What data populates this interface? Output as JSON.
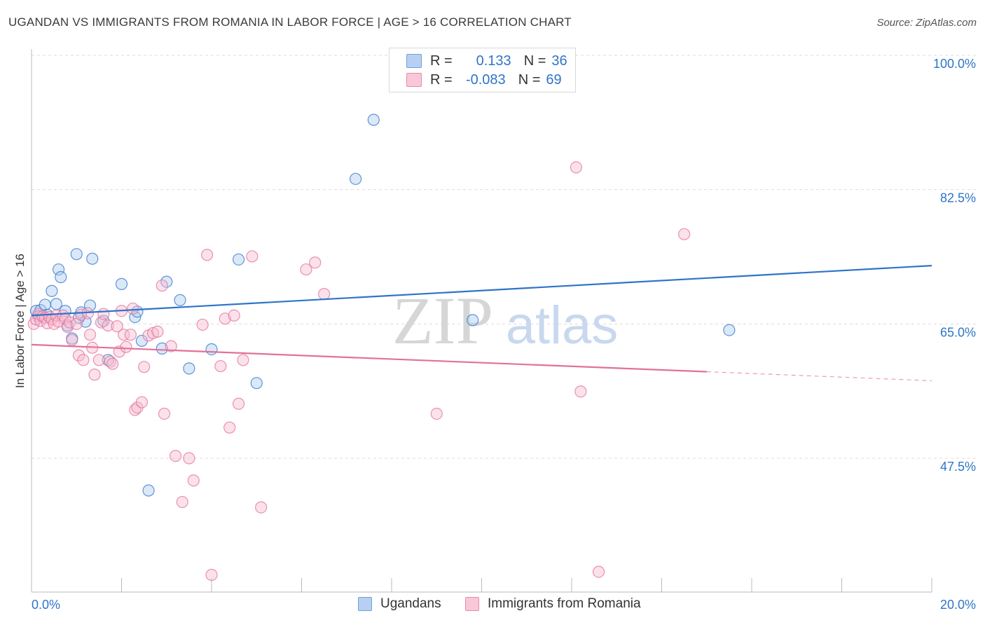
{
  "header": {
    "title": "UGANDAN VS IMMIGRANTS FROM ROMANIA IN LABOR FORCE | AGE > 16 CORRELATION CHART",
    "source": "Source: ZipAtlas.com"
  },
  "colors": {
    "blue": "#2f74c8",
    "blue_fill": "#aecbf0",
    "pink": "#e3709a",
    "pink_fill": "#f6bcd0",
    "grid": "#dcdcdc",
    "watermark": "#d9d9d9"
  },
  "stats": {
    "rows": [
      {
        "r_label": "R =",
        "r_value": "0.133",
        "n_label": "N =",
        "n_value": "36"
      },
      {
        "r_label": "R =",
        "r_value": "-0.083",
        "n_label": "N =",
        "n_value": "69"
      }
    ]
  },
  "watermark": {
    "zip": "ZIP",
    "atlas": "atlas"
  },
  "legend": {
    "items": [
      "Ugandans",
      "Immigrants from Romania"
    ]
  },
  "chart_data": {
    "type": "scatter",
    "title": "UGANDAN VS IMMIGRANTS FROM ROMANIA IN LABOR FORCE | AGE > 16 CORRELATION CHART",
    "xlabel": "",
    "ylabel": "In Labor Force | Age > 16",
    "xlim": [
      0,
      20
    ],
    "ylim": [
      30,
      103
    ],
    "x_tick_labels": [
      "0.0%",
      "20.0%"
    ],
    "y_ticks": [
      47.5,
      65.0,
      82.5,
      100.0
    ],
    "y_tick_labels": [
      "47.5%",
      "65.0%",
      "82.5%",
      "100.0%"
    ],
    "grid": true,
    "series": [
      {
        "name": "Ugandans",
        "r": 0.133,
        "n": 36,
        "trend": {
          "x": [
            0.0,
            20.0
          ],
          "y": [
            66.1,
            72.6
          ],
          "dashed_from": null
        },
        "points": [
          {
            "x": 0.1,
            "y": 66.7
          },
          {
            "x": 0.2,
            "y": 66.8
          },
          {
            "x": 0.3,
            "y": 67.5
          },
          {
            "x": 0.35,
            "y": 66.2
          },
          {
            "x": 0.45,
            "y": 69.3
          },
          {
            "x": 0.55,
            "y": 67.6
          },
          {
            "x": 0.6,
            "y": 72.1
          },
          {
            "x": 0.65,
            "y": 71.1
          },
          {
            "x": 0.75,
            "y": 66.7
          },
          {
            "x": 0.8,
            "y": 64.8
          },
          {
            "x": 0.9,
            "y": 63.1
          },
          {
            "x": 1.0,
            "y": 74.1
          },
          {
            "x": 1.1,
            "y": 66.5
          },
          {
            "x": 1.2,
            "y": 65.3
          },
          {
            "x": 1.3,
            "y": 67.4
          },
          {
            "x": 1.35,
            "y": 73.5
          },
          {
            "x": 1.6,
            "y": 65.4
          },
          {
            "x": 1.7,
            "y": 60.3
          },
          {
            "x": 2.0,
            "y": 70.2
          },
          {
            "x": 2.3,
            "y": 65.9
          },
          {
            "x": 2.35,
            "y": 66.6
          },
          {
            "x": 2.45,
            "y": 62.8
          },
          {
            "x": 2.6,
            "y": 43.3
          },
          {
            "x": 2.9,
            "y": 61.8
          },
          {
            "x": 3.0,
            "y": 70.5
          },
          {
            "x": 3.3,
            "y": 68.1
          },
          {
            "x": 3.5,
            "y": 59.2
          },
          {
            "x": 4.0,
            "y": 61.7
          },
          {
            "x": 4.6,
            "y": 73.4
          },
          {
            "x": 5.0,
            "y": 57.3
          },
          {
            "x": 7.2,
            "y": 83.9
          },
          {
            "x": 7.6,
            "y": 91.6
          },
          {
            "x": 9.8,
            "y": 65.5
          },
          {
            "x": 15.5,
            "y": 64.2
          },
          {
            "x": 0.15,
            "y": 66.0
          },
          {
            "x": 1.05,
            "y": 65.8
          }
        ]
      },
      {
        "name": "Immigrants from Romania",
        "r": -0.083,
        "n": 69,
        "trend": {
          "x": [
            0.0,
            20.0
          ],
          "y": [
            62.3,
            57.6
          ],
          "dashed_from": 15.0
        },
        "points": [
          {
            "x": 0.05,
            "y": 65.0
          },
          {
            "x": 0.1,
            "y": 65.6
          },
          {
            "x": 0.15,
            "y": 66.3
          },
          {
            "x": 0.2,
            "y": 65.4
          },
          {
            "x": 0.25,
            "y": 66.0
          },
          {
            "x": 0.3,
            "y": 65.8
          },
          {
            "x": 0.35,
            "y": 65.1
          },
          {
            "x": 0.4,
            "y": 65.9
          },
          {
            "x": 0.45,
            "y": 65.6
          },
          {
            "x": 0.5,
            "y": 65.0
          },
          {
            "x": 0.55,
            "y": 66.1
          },
          {
            "x": 0.6,
            "y": 65.3
          },
          {
            "x": 0.7,
            "y": 66.1
          },
          {
            "x": 0.75,
            "y": 65.7
          },
          {
            "x": 0.8,
            "y": 64.6
          },
          {
            "x": 0.85,
            "y": 65.2
          },
          {
            "x": 0.9,
            "y": 62.9
          },
          {
            "x": 1.0,
            "y": 65.0
          },
          {
            "x": 1.05,
            "y": 60.9
          },
          {
            "x": 1.1,
            "y": 66.2
          },
          {
            "x": 1.15,
            "y": 60.3
          },
          {
            "x": 1.25,
            "y": 66.4
          },
          {
            "x": 1.3,
            "y": 63.6
          },
          {
            "x": 1.35,
            "y": 61.9
          },
          {
            "x": 1.4,
            "y": 58.4
          },
          {
            "x": 1.5,
            "y": 60.3
          },
          {
            "x": 1.55,
            "y": 65.2
          },
          {
            "x": 1.6,
            "y": 66.3
          },
          {
            "x": 1.7,
            "y": 64.8
          },
          {
            "x": 1.75,
            "y": 60.1
          },
          {
            "x": 1.8,
            "y": 59.8
          },
          {
            "x": 1.9,
            "y": 64.7
          },
          {
            "x": 1.95,
            "y": 61.4
          },
          {
            "x": 2.0,
            "y": 66.7
          },
          {
            "x": 2.05,
            "y": 63.6
          },
          {
            "x": 2.1,
            "y": 62.0
          },
          {
            "x": 2.2,
            "y": 63.6
          },
          {
            "x": 2.25,
            "y": 67.0
          },
          {
            "x": 2.3,
            "y": 53.8
          },
          {
            "x": 2.35,
            "y": 54.1
          },
          {
            "x": 2.45,
            "y": 54.8
          },
          {
            "x": 2.5,
            "y": 59.4
          },
          {
            "x": 2.6,
            "y": 63.5
          },
          {
            "x": 2.7,
            "y": 63.8
          },
          {
            "x": 2.8,
            "y": 64.0
          },
          {
            "x": 2.9,
            "y": 70.0
          },
          {
            "x": 2.95,
            "y": 53.3
          },
          {
            "x": 3.1,
            "y": 62.1
          },
          {
            "x": 3.2,
            "y": 47.8
          },
          {
            "x": 3.35,
            "y": 41.8
          },
          {
            "x": 3.5,
            "y": 47.5
          },
          {
            "x": 3.6,
            "y": 44.6
          },
          {
            "x": 3.8,
            "y": 64.9
          },
          {
            "x": 3.9,
            "y": 74.0
          },
          {
            "x": 4.0,
            "y": 32.3
          },
          {
            "x": 4.2,
            "y": 59.5
          },
          {
            "x": 4.3,
            "y": 65.7
          },
          {
            "x": 4.4,
            "y": 51.5
          },
          {
            "x": 4.5,
            "y": 66.1
          },
          {
            "x": 4.6,
            "y": 54.6
          },
          {
            "x": 4.7,
            "y": 60.3
          },
          {
            "x": 4.9,
            "y": 73.8
          },
          {
            "x": 5.1,
            "y": 41.1
          },
          {
            "x": 6.1,
            "y": 72.1
          },
          {
            "x": 6.3,
            "y": 73.0
          },
          {
            "x": 6.5,
            "y": 68.9
          },
          {
            "x": 9.0,
            "y": 53.3
          },
          {
            "x": 12.1,
            "y": 85.4
          },
          {
            "x": 12.2,
            "y": 56.2
          }
        ]
      }
    ],
    "extra_points": [
      {
        "series": "Immigrants from Romania",
        "x": 12.6,
        "y": 32.7
      },
      {
        "series": "Immigrants from Romania",
        "x": 14.5,
        "y": 76.7
      }
    ]
  }
}
